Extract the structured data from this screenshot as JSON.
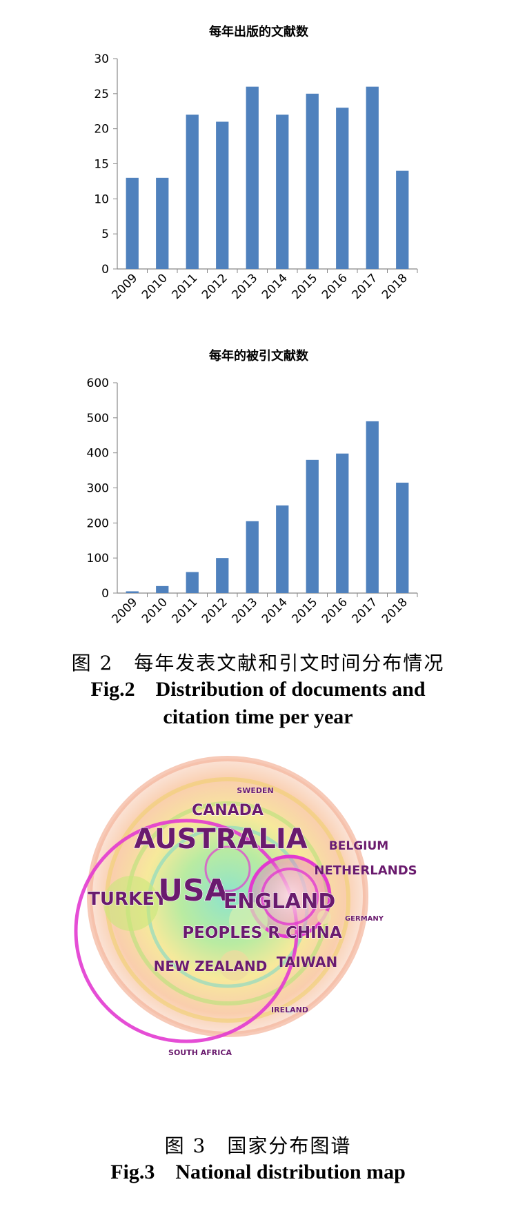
{
  "chart_data": [
    {
      "type": "bar",
      "title": "每年出版的文献数",
      "categories": [
        "2009",
        "2010",
        "2011",
        "2012",
        "2013",
        "2014",
        "2015",
        "2016",
        "2017",
        "2018"
      ],
      "values": [
        13,
        13,
        22,
        21,
        26,
        22,
        25,
        23,
        26,
        14
      ],
      "ylim": [
        0,
        30
      ],
      "yticks": [
        0,
        5,
        10,
        15,
        20,
        25,
        30
      ],
      "bar_color": "#4f81bd",
      "grid": false,
      "legend": "none"
    },
    {
      "type": "bar",
      "title": "每年的被引文献数",
      "categories": [
        "2009",
        "2010",
        "2011",
        "2012",
        "2013",
        "2014",
        "2015",
        "2016",
        "2017",
        "2018"
      ],
      "values": [
        5,
        20,
        60,
        100,
        205,
        250,
        380,
        398,
        490,
        315
      ],
      "ylim": [
        0,
        600
      ],
      "yticks": [
        0,
        100,
        200,
        300,
        400,
        500,
        600
      ],
      "bar_color": "#4f81bd",
      "grid": false,
      "legend": "none"
    }
  ],
  "captions": {
    "fig2_zh": "图 2　每年发表文献和引文时间分布情况",
    "fig2_en_line1": "Fig.2　Distribution of documents and",
    "fig2_en_line2": "citation time per year",
    "fig3_zh": "图 3　国家分布图谱",
    "fig3_en": "Fig.3　National distribution map"
  },
  "map": {
    "labels": [
      {
        "text": "SWEDEN",
        "size": "small"
      },
      {
        "text": "CANADA",
        "size": "medium"
      },
      {
        "text": "AUSTRALIA",
        "size": "large"
      },
      {
        "text": "BELGIUM",
        "size": "small"
      },
      {
        "text": "NETHERLANDS",
        "size": "small"
      },
      {
        "text": "TURKEY",
        "size": "medium"
      },
      {
        "text": "USA",
        "size": "large"
      },
      {
        "text": "ENGLAND",
        "size": "large"
      },
      {
        "text": "GERMANY",
        "size": "small"
      },
      {
        "text": "PEOPLES R CHINA",
        "size": "medium"
      },
      {
        "text": "NEW ZEALAND",
        "size": "medium"
      },
      {
        "text": "TAIWAN",
        "size": "medium"
      },
      {
        "text": "IRELAND",
        "size": "small"
      },
      {
        "text": "SOUTH AFRICA",
        "size": "small"
      }
    ],
    "label_color": "#6a1b6e"
  }
}
